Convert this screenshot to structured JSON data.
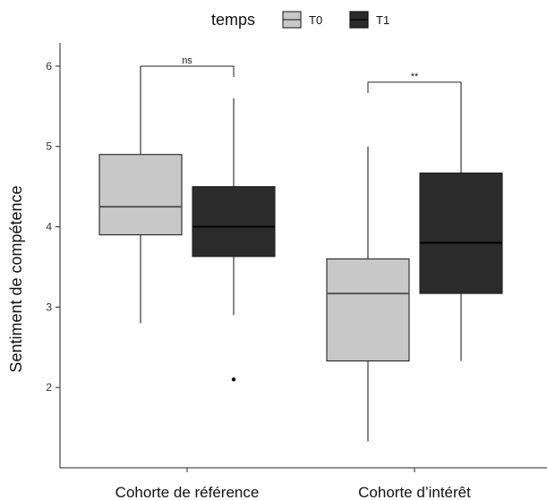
{
  "chart_data": {
    "type": "boxplot",
    "ylabel": "Sentiment de compétence",
    "xlabel": "",
    "ylim": [
      1.2,
      6.3
    ],
    "yticks": [
      2,
      3,
      4,
      5,
      6
    ],
    "categories": [
      "Cohorte de référence",
      "Cohorte d’intérêt"
    ],
    "legend": {
      "title": "temps",
      "position": "top",
      "entries": [
        "T0",
        "T1"
      ]
    },
    "grid": false,
    "series": [
      {
        "name": "T0",
        "color": "#c8c8c8",
        "boxes": [
          {
            "category": "Cohorte de référence",
            "min": 2.8,
            "q1": 3.9,
            "median": 4.25,
            "q3": 4.9,
            "max": 6.0,
            "outliers": []
          },
          {
            "category": "Cohorte d’intérêt",
            "min": 1.33,
            "q1": 2.33,
            "median": 3.17,
            "q3": 3.6,
            "max": 5.0,
            "outliers": []
          }
        ]
      },
      {
        "name": "T1",
        "color": "#2b2b2b",
        "boxes": [
          {
            "category": "Cohorte de référence",
            "min": 2.9,
            "q1": 3.63,
            "median": 4.0,
            "q3": 4.5,
            "max": 5.6,
            "outliers": [
              2.1
            ]
          },
          {
            "category": "Cohorte d’intérêt",
            "min": 2.33,
            "q1": 3.17,
            "median": 3.8,
            "q3": 4.67,
            "max": 5.8,
            "outliers": []
          }
        ]
      }
    ],
    "annotations": [
      {
        "category": "Cohorte de référence",
        "label": "ns",
        "y": 6.0
      },
      {
        "category": "Cohorte d’intérêt",
        "label": "**",
        "y": 5.8
      }
    ]
  }
}
